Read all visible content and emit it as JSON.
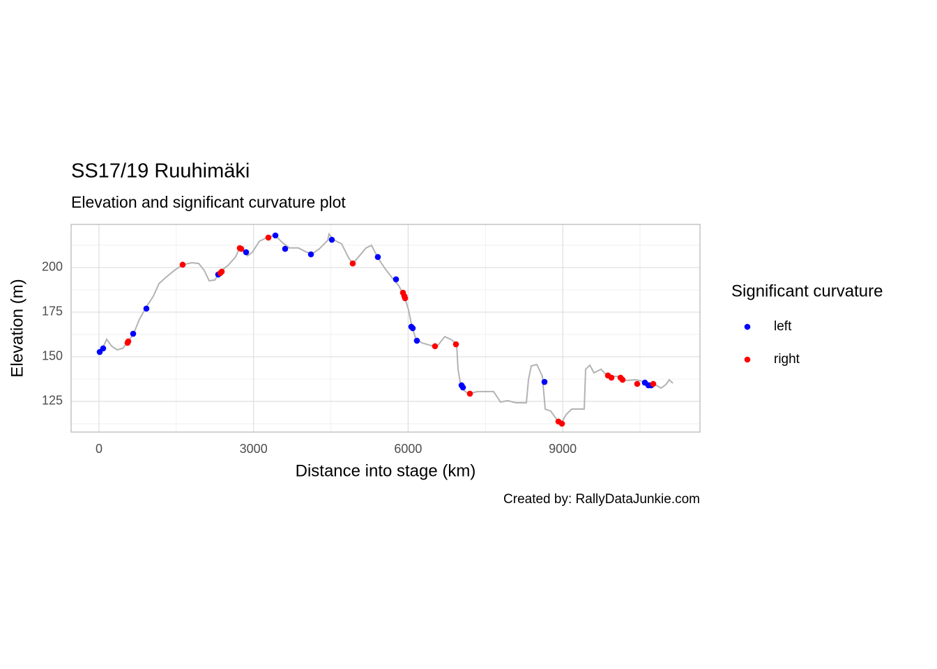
{
  "chart_data": {
    "type": "line",
    "title": "SS17/19 Ruuhimäki",
    "subtitle": "Elevation and significant curvature plot",
    "xlabel": "Distance into stage (km)",
    "ylabel": "Elevation (m)",
    "caption": "Created by: RallyDataJunkie.com",
    "legend_title": "Significant curvature",
    "color": "#b3b3b3",
    "xlim": [
      -541,
      11664
    ],
    "ylim": [
      107.8,
      224.2
    ],
    "xticks": [
      0,
      3000,
      6000,
      9000
    ],
    "yticks": [
      125,
      150,
      175,
      200
    ],
    "xminor": [
      1500,
      4500,
      7500,
      10500
    ],
    "yminor": [
      112.5,
      137.5,
      162.5,
      187.5,
      212.5
    ],
    "grid": true,
    "x": [
      0,
      81,
      149,
      244,
      352,
      460,
      568,
      677,
      785,
      920,
      1055,
      1164,
      1299,
      1461,
      1624,
      1800,
      1935,
      2043,
      2138,
      2246,
      2355,
      2517,
      2652,
      2733,
      2882,
      2977,
      3112,
      3288,
      3424,
      3559,
      3694,
      3870,
      4032,
      4140,
      4276,
      4438,
      4465,
      4546,
      4709,
      4844,
      4925,
      5047,
      5182,
      5290,
      5412,
      5548,
      5683,
      5818,
      5927,
      6008,
      6062,
      6144,
      6265,
      6441,
      6576,
      6712,
      6847,
      6942,
      6969,
      7009,
      7077,
      7172,
      7348,
      7659,
      7794,
      7929,
      8092,
      8295,
      8336,
      8390,
      8498,
      8606,
      8660,
      8769,
      8904,
      8985,
      9066,
      9175,
      9418,
      9445,
      9526,
      9607,
      9743,
      9878,
      10054,
      10230,
      10419,
      10595,
      10798,
      10906,
      11001,
      11069,
      11137
    ],
    "values": [
      152.7,
      155.5,
      159.8,
      156,
      153.9,
      154.7,
      158.6,
      163.3,
      171,
      178,
      184,
      191,
      194.5,
      198.4,
      201.6,
      202.7,
      202.3,
      198.4,
      192.6,
      193,
      197.7,
      201.6,
      206,
      211.3,
      206.6,
      208.6,
      214.8,
      217.2,
      218,
      214,
      211,
      211,
      208.6,
      207.8,
      210.5,
      215.2,
      218.8,
      215.6,
      213.3,
      205.5,
      202.3,
      206.3,
      211,
      212.5,
      205.5,
      199.6,
      194.5,
      189.8,
      184,
      176.2,
      168.4,
      160.5,
      157.8,
      156.3,
      156.3,
      161.3,
      159.4,
      157,
      143,
      136,
      131.3,
      129.3,
      130.5,
      130.5,
      124.6,
      125.4,
      124.2,
      124.2,
      137.1,
      144.9,
      145.7,
      139,
      120.7,
      119.5,
      114.1,
      113.3,
      117.6,
      120.7,
      120.7,
      143,
      145.3,
      141,
      143,
      139,
      139,
      136.7,
      137.1,
      136,
      134.4,
      132.4,
      134.4,
      137.1,
      135.2
    ],
    "series": [
      {
        "name": "left",
        "type": "scatter",
        "color": "#0000ff",
        "x": [
          14,
          81,
          663,
          920,
          2314,
          2855,
          3424,
          3613,
          4114,
          4519,
          5412,
          5765,
          6062,
          6089,
          6170,
          7037,
          7064,
          8647,
          10595,
          10663,
          10717
        ],
        "values": [
          152.7,
          154.7,
          162.9,
          177,
          196.1,
          208.6,
          218,
          210.5,
          207.4,
          215.6,
          205.9,
          193.4,
          166.8,
          166,
          159,
          134,
          132.8,
          135.9,
          135.5,
          134,
          134
        ]
      },
      {
        "name": "right",
        "type": "scatter",
        "color": "#ff0000",
        "x": [
          555,
          568,
          1624,
          2355,
          2382,
          2733,
          2760,
          3288,
          4925,
          5900,
          5927,
          5941,
          6522,
          6928,
          7199,
          8917,
          8985,
          9878,
          9946,
          10122,
          10162,
          10446,
          10757
        ],
        "values": [
          157.8,
          158.6,
          201.6,
          196.9,
          197.7,
          210.9,
          210.5,
          216.8,
          202.3,
          185.9,
          184,
          182.8,
          155.9,
          157,
          129.3,
          113.7,
          112.5,
          139.5,
          138.3,
          138.3,
          137.1,
          134.8,
          134.8
        ]
      }
    ]
  }
}
